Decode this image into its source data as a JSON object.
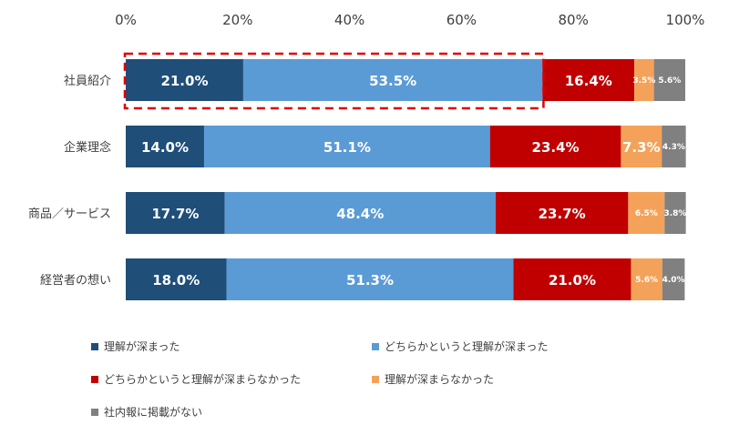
{
  "chart_data": {
    "type": "bar",
    "orientation": "horizontal",
    "stacked": true,
    "x_ticks": [
      "0%",
      "20%",
      "40%",
      "60%",
      "80%",
      "100%"
    ],
    "xlim": [
      0,
      100
    ],
    "categories": [
      "社員紹介",
      "企業理念",
      "商品／サービス",
      "経営者の想い"
    ],
    "series": [
      {
        "name": "理解が深まった",
        "color": "#1f4e79",
        "values": [
          21.0,
          14.0,
          17.7,
          18.0
        ],
        "labels": [
          "21.0%",
          "14.0%",
          "17.7%",
          "18.0%"
        ]
      },
      {
        "name": "どちらかというと理解が深まった",
        "color": "#5b9bd5",
        "values": [
          53.5,
          51.1,
          48.4,
          51.3
        ],
        "labels": [
          "53.5%",
          "51.1%",
          "48.4%",
          "51.3%"
        ]
      },
      {
        "name": "どちらかというと理解が深まらなかった",
        "color": "#c00000",
        "values": [
          16.4,
          23.4,
          23.7,
          21.0
        ],
        "labels": [
          "16.4%",
          "23.4%",
          "23.7%",
          "21.0%"
        ]
      },
      {
        "name": "理解が深まらなかった",
        "color": "#f4a259",
        "values": [
          3.5,
          7.3,
          6.5,
          5.6
        ],
        "labels": [
          "3.5%",
          "7.3%",
          "6.5%",
          "5.6%"
        ]
      },
      {
        "name": "社内報に掲載がない",
        "color": "#808080",
        "values": [
          5.6,
          4.3,
          3.8,
          4.0
        ],
        "labels": [
          "5.6%",
          "4.3%",
          "3.8%",
          "4.0%"
        ]
      }
    ],
    "highlight": {
      "category": "社員紹介",
      "style": "red dashed box",
      "color": "#e00000"
    },
    "legend_position": "bottom",
    "grid": false
  }
}
